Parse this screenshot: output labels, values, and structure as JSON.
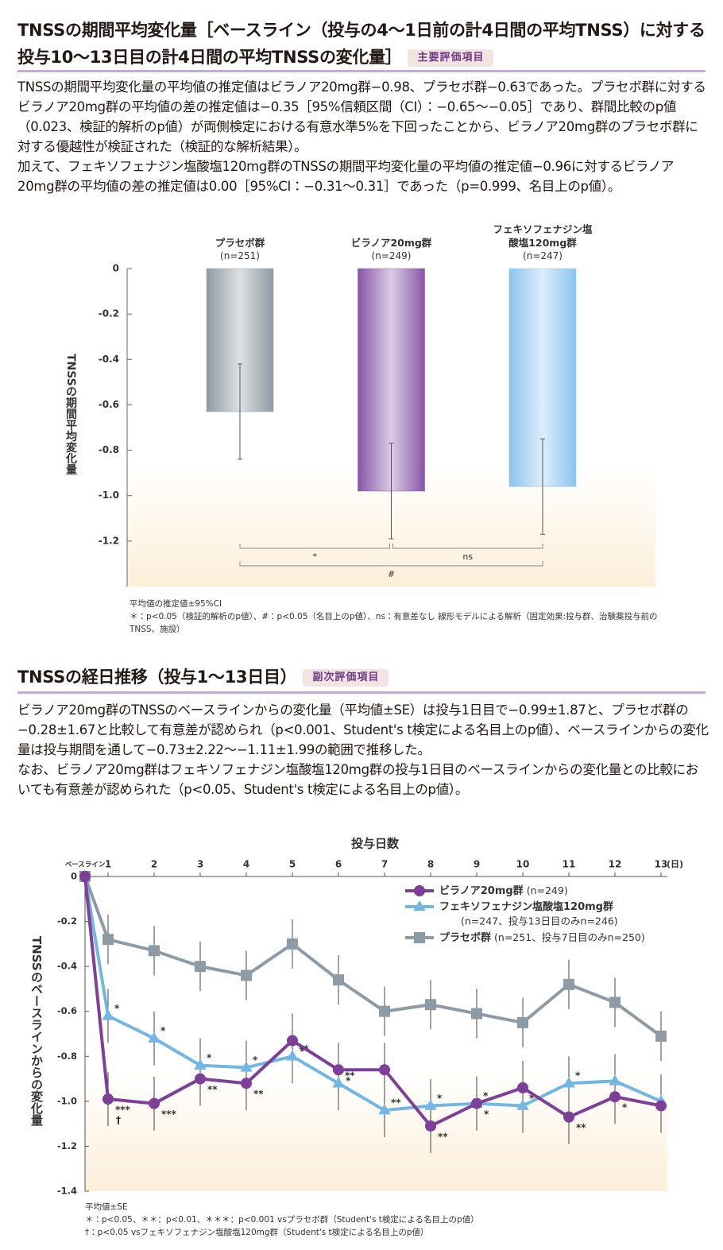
{
  "sections": [
    {
      "title": "TNSSの期間平均変化量［ベースライン（投与の4～1日前の計4日間の平均TNSS）に対する投与10～13日目の計4日間の平均TNSSの変化量］",
      "badge": "主要評価項目",
      "paragraphs": [
        "TNSSの期間平均変化量の平均値の推定値はビラノア20mg群−0.98、プラセボ群−0.63であった。プラセボ群に対するビラノア20mg群の平均値の差の推定値は−0.35［95%信頼区間（CI）：−0.65～−0.05］であり、群間比較のp値（0.023、検証的解析のp値）が両側検定における有意水準5%を下回ったことから、ビラノア20mg群のプラセボ群に対する優越性が検証された（検証的な解析結果）。",
        "加えて、フェキソフェナジン塩酸塩120mg群のTNSSの期間平均変化量の平均値の推定値−0.96に対するビラノア20mg群の平均値の差の推定値は0.00［95%CI：−0.31～0.31］であった（p=0.999、名目上のp値）。"
      ]
    },
    {
      "title": "TNSSの経日推移（投与1～13日目）",
      "badge": "副次評価項目",
      "paragraphs": [
        "ビラノア20mg群のTNSSのベースラインからの変化量（平均値±SE）は投与1日目で−0.99±1.87と、プラセボ群の−0.28±1.67と比較して有意差が認められ（p<0.001、Student's t検定による名目上のp値）、ベースラインからの変化量は投与期間を通して−0.73±2.22～−1.11±1.99の範囲で推移した。",
        "なお、ビラノア20mg群はフェキソフェナジン塩酸塩120mg群の投与1日目のベースラインからの変化量との比較においても有意差が認められた（p<0.05、Student's t検定による名目上のp値）。"
      ]
    }
  ],
  "chart_data": [
    {
      "type": "bar",
      "ylabel": "TNSSの期間平均変化量",
      "categories": [
        "プラセボ群",
        "ビラノア20mg群",
        "フェキソフェナジン塩酸塩120mg群"
      ],
      "n_labels": [
        "(n=251)",
        "(n=249)",
        "(n=247)"
      ],
      "values": [
        -0.63,
        -0.98,
        -0.96
      ],
      "errors": [
        0.21,
        0.21,
        0.21
      ],
      "colors": [
        "#8e9aa3",
        "#8656a6",
        "#8cc4ee"
      ],
      "ylim": [
        -1.4,
        0
      ],
      "yticks": [
        0,
        -0.2,
        -0.4,
        -0.6,
        -0.8,
        {
          "value": -1,
          "label": "-1.0"
        },
        -1.2
      ],
      "comparisons": [
        {
          "label": "*"
        },
        {
          "label": "ns"
        },
        {
          "label": "#"
        }
      ],
      "footnotes": [
        "平均値の推定値±95%CI",
        "＊：p<0.05（検証的解析のp値）、#：p<0.05（名目上のp値）、ns：有意差なし 線形モデルによる解析（固定効果:投与群、治験薬投与前のTNSS、施設）"
      ]
    },
    {
      "type": "line",
      "xlabel": "投与日数",
      "x_unit": "(日)",
      "ylabel": "TNSSのベースラインからの変化量",
      "categories": [
        "ベースライン",
        "1",
        "2",
        "3",
        "4",
        "5",
        "6",
        "7",
        "8",
        "9",
        "10",
        "11",
        "12",
        "13"
      ],
      "ylim": [
        -1.4,
        0
      ],
      "yticks": [
        0,
        -0.2,
        -0.4,
        -0.6,
        -0.8,
        {
          "value": -1,
          "label": "-1.0"
        },
        -1.2,
        -1.4
      ],
      "series": [
        {
          "name": "ビラノア20mg群",
          "n_label": "(n=249)",
          "color": "#7d3f98",
          "marker": "circle",
          "values": [
            0,
            -0.99,
            -1.01,
            -0.9,
            -0.92,
            -0.73,
            -0.86,
            -0.86,
            -1.11,
            -1.01,
            -0.94,
            -1.07,
            -0.98,
            -1.02
          ],
          "errors": [
            null,
            0.12,
            0.12,
            0.12,
            0.12,
            0.12,
            0.12,
            0.12,
            0.12,
            0.12,
            0.12,
            0.12,
            0.12,
            0.12
          ],
          "point_labels": [
            null,
            "***",
            "***",
            "**",
            "**",
            "*",
            "*",
            null,
            "**",
            "*",
            null,
            "**",
            "*",
            null
          ],
          "dagger_labels": [
            null,
            "†",
            null,
            null,
            null,
            null,
            null,
            null,
            null,
            null,
            null,
            null,
            null,
            null
          ]
        },
        {
          "name": "フェキソフェナジン塩酸塩120mg群",
          "n_label": "(n=247、投与13日目のみn=246)",
          "color": "#72b6e4",
          "marker": "triangle",
          "values": [
            0,
            -0.62,
            -0.72,
            -0.84,
            -0.85,
            -0.8,
            -0.92,
            -1.04,
            -1.02,
            -1.01,
            -1.02,
            -0.92,
            -0.91,
            -1.0
          ],
          "errors": [
            null,
            0.12,
            0.12,
            0.12,
            0.12,
            0.12,
            0.12,
            0.12,
            0.12,
            0.12,
            0.12,
            0.12,
            0.12,
            0.12
          ],
          "point_labels": [
            null,
            "*",
            "*",
            "*",
            "*",
            "**",
            "**",
            "**",
            "*",
            "*",
            "*",
            "*",
            null,
            null
          ]
        },
        {
          "name": "プラセボ群",
          "n_label": "(n=251、投与7日目のみn=250)",
          "color": "#8c9ba5",
          "marker": "square",
          "values": [
            0,
            -0.28,
            -0.33,
            -0.4,
            -0.44,
            -0.3,
            -0.46,
            -0.6,
            -0.57,
            -0.61,
            -0.65,
            -0.48,
            -0.56,
            -0.71
          ],
          "errors": [
            null,
            0.11,
            0.11,
            0.11,
            0.11,
            0.11,
            0.11,
            0.11,
            0.11,
            0.11,
            0.11,
            0.11,
            0.11,
            0.11
          ]
        }
      ],
      "footnotes": [
        "平均値±SE",
        "＊：p<0.05、＊＊：p<0.01、＊＊＊：p<0.001 vsプラセボ群（Student's t検定による名目上のp値）",
        "†：p<0.05 vsフェキソフェナジン塩酸塩120mg群（Student's t検定による名目上のp値）"
      ]
    }
  ]
}
